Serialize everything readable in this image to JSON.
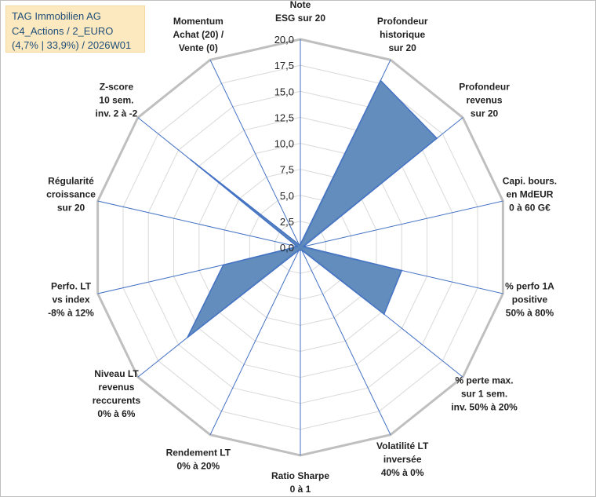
{
  "title_box": {
    "line1": "TAG Immobilien AG",
    "line2": "C4_Actions / 2_EURO",
    "line3": "(4,7% | 33,9%) / 2026W01"
  },
  "chart_data": {
    "type": "radar",
    "rlim": [
      0,
      20
    ],
    "ticks": [
      "0,0",
      "2,5",
      "5,0",
      "7,5",
      "10,0",
      "12,5",
      "15,0",
      "17,5",
      "20,0"
    ],
    "tick_values": [
      0,
      2.5,
      5,
      7.5,
      10,
      12.5,
      15,
      17.5,
      20
    ],
    "axes": [
      {
        "lines": [
          "Note",
          "ESG sur 20"
        ],
        "value": 0.3
      },
      {
        "lines": [
          "Profondeur",
          "historique",
          "sur 20"
        ],
        "value": 17.8
      },
      {
        "lines": [
          "Profondeur",
          "revenus",
          "sur 20"
        ],
        "value": 16.8
      },
      {
        "lines": [
          "Capi. bours.",
          "en MdEUR",
          "0 à 60 G€"
        ],
        "value": 0.3
      },
      {
        "lines": [
          "% perfo 1A",
          "positive",
          "50% à 80%"
        ],
        "value": 10.0
      },
      {
        "lines": [
          "% perte max.",
          "sur 1 sem.",
          "inv. 50% à 20%"
        ],
        "value": 10.3
      },
      {
        "lines": [
          "Volatilité LT",
          "inversée",
          "40% à 0%"
        ],
        "value": 0.3
      },
      {
        "lines": [
          "Ratio Sharpe",
          "0 à 1"
        ],
        "value": 0.3
      },
      {
        "lines": [
          "Rendement LT",
          "0% à 20%"
        ],
        "value": 0.3
      },
      {
        "lines": [
          "Niveau LT",
          "revenus",
          "reccurents",
          "0% à 6%"
        ],
        "value": 13.9
      },
      {
        "lines": [
          "Perfo. LT",
          "vs index",
          "-8% à 12%"
        ],
        "value": 7.6
      },
      {
        "lines": [
          "Régularité",
          "croissance",
          "sur 20"
        ],
        "value": 0.3
      },
      {
        "lines": [
          "Z-score",
          "10 sem.",
          "inv. 2 à -2"
        ],
        "value": 13.5
      },
      {
        "lines": [
          "Momentum",
          "Achat (20) /",
          "Vente (0)"
        ],
        "value": 0.3
      }
    ],
    "series": [
      {
        "name": "TAG Immobilien AG"
      }
    ],
    "colors": {
      "fill": "#5b87b8",
      "stroke": "#4472c4",
      "grid": "#d9d9d9",
      "outer": "#bfbfbf",
      "spoke": "#4472c4"
    }
  }
}
